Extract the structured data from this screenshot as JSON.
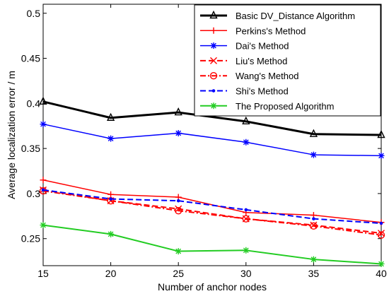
{
  "chart_data": {
    "type": "line",
    "xlabel": "Number of anchor nodes",
    "ylabel": "Average localization error / m",
    "xlim": [
      15,
      40
    ],
    "ylim": [
      0.22,
      0.51
    ],
    "xticks": [
      15,
      20,
      25,
      30,
      35,
      40
    ],
    "xtick_labels": [
      "15",
      "20",
      "25",
      "30",
      "35",
      "40"
    ],
    "yticks": [
      0.25,
      0.3,
      0.35,
      0.4,
      0.45,
      0.5
    ],
    "ytick_labels": [
      "0.25",
      "0.3",
      "0.35",
      "0.4",
      "0.45",
      "0.5"
    ],
    "grid": false,
    "legend_position": "top-right",
    "x": [
      15,
      20,
      25,
      30,
      35,
      40
    ],
    "series": [
      {
        "name": "Basic DV_Distance Algorithm",
        "values": [
          0.402,
          0.384,
          0.39,
          0.38,
          0.366,
          0.365
        ],
        "color": "#000000",
        "marker": "triangle",
        "dash": "solid",
        "width": 3
      },
      {
        "name": "Perkins's Method",
        "values": [
          0.315,
          0.299,
          0.296,
          0.279,
          0.276,
          0.268
        ],
        "color": "#ff0000",
        "marker": "plus",
        "dash": "solid",
        "width": 1.5
      },
      {
        "name": "Dai's Method",
        "values": [
          0.377,
          0.361,
          0.367,
          0.357,
          0.343,
          0.342
        ],
        "color": "#0000ff",
        "marker": "star",
        "dash": "solid",
        "width": 1.5
      },
      {
        "name": "Liu's Method",
        "values": [
          0.304,
          0.292,
          0.283,
          0.272,
          0.265,
          0.256
        ],
        "color": "#ff0000",
        "marker": "x",
        "dash": "dashed",
        "width": 2
      },
      {
        "name": "Wang's Method",
        "values": [
          0.303,
          0.292,
          0.281,
          0.272,
          0.264,
          0.254
        ],
        "color": "#ff0000",
        "marker": "circle",
        "dash": "dashdot",
        "width": 2
      },
      {
        "name": "Shi's Method",
        "values": [
          0.304,
          0.294,
          0.292,
          0.282,
          0.272,
          0.267
        ],
        "color": "#0000ff",
        "marker": "dot",
        "dash": "dashed",
        "width": 2
      },
      {
        "name": "The Proposed Algorithm",
        "values": [
          0.265,
          0.255,
          0.236,
          0.237,
          0.227,
          0.222
        ],
        "color": "#22cc22",
        "marker": "star",
        "dash": "solid",
        "width": 2
      }
    ]
  }
}
